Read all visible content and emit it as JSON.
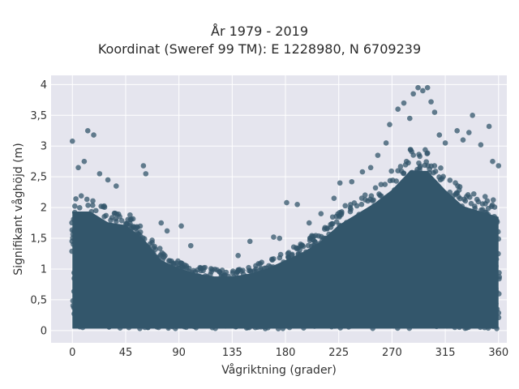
{
  "chart_data": {
    "type": "scatter",
    "title": "År 1979 - 2019",
    "subtitle": "Koordinat (Sweref 99 TM): E 1228980, N 6709239",
    "xlabel": "Vågriktning (grader)",
    "ylabel": "Signifikant våghöjd (m)",
    "xlim": [
      -18,
      367
    ],
    "ylim": [
      -0.2,
      4.15
    ],
    "xticks": [
      {
        "value": 0,
        "label": "0"
      },
      {
        "value": 45,
        "label": "45"
      },
      {
        "value": 90,
        "label": "90"
      },
      {
        "value": 135,
        "label": "135"
      },
      {
        "value": 180,
        "label": "180"
      },
      {
        "value": 225,
        "label": "225"
      },
      {
        "value": 270,
        "label": "270"
      },
      {
        "value": 315,
        "label": "315"
      },
      {
        "value": 360,
        "label": "360"
      }
    ],
    "yticks": [
      {
        "value": 0,
        "label": "0"
      },
      {
        "value": 0.5,
        "label": "0,5"
      },
      {
        "value": 1,
        "label": "1"
      },
      {
        "value": 1.5,
        "label": "1,5"
      },
      {
        "value": 2,
        "label": "2"
      },
      {
        "value": 2.5,
        "label": "2,5"
      },
      {
        "value": 3,
        "label": "3"
      },
      {
        "value": 3.5,
        "label": "3,5"
      },
      {
        "value": 4,
        "label": "4"
      }
    ],
    "grid": true,
    "marker_color": "#33566b",
    "background_color": "#e5e5ee",
    "envelope_max": [
      [
        0,
        2.2
      ],
      [
        15,
        2.2
      ],
      [
        30,
        2.0
      ],
      [
        45,
        1.95
      ],
      [
        60,
        1.7
      ],
      [
        75,
        1.3
      ],
      [
        90,
        1.15
      ],
      [
        105,
        1.05
      ],
      [
        120,
        1.0
      ],
      [
        135,
        1.0
      ],
      [
        150,
        1.05
      ],
      [
        165,
        1.15
      ],
      [
        180,
        1.3
      ],
      [
        195,
        1.45
      ],
      [
        210,
        1.65
      ],
      [
        225,
        1.95
      ],
      [
        240,
        2.15
      ],
      [
        255,
        2.35
      ],
      [
        270,
        2.6
      ],
      [
        285,
        2.95
      ],
      [
        300,
        2.95
      ],
      [
        315,
        2.6
      ],
      [
        330,
        2.3
      ],
      [
        345,
        2.2
      ],
      [
        360,
        2.1
      ]
    ],
    "outliers": [
      [
        0,
        3.08
      ],
      [
        5,
        2.65
      ],
      [
        13,
        3.25
      ],
      [
        18,
        3.18
      ],
      [
        10,
        2.75
      ],
      [
        23,
        2.55
      ],
      [
        30,
        2.45
      ],
      [
        37,
        2.35
      ],
      [
        60,
        2.68
      ],
      [
        62,
        2.55
      ],
      [
        75,
        1.75
      ],
      [
        80,
        1.62
      ],
      [
        92,
        1.7
      ],
      [
        100,
        1.38
      ],
      [
        140,
        1.22
      ],
      [
        150,
        1.45
      ],
      [
        170,
        1.52
      ],
      [
        175,
        1.5
      ],
      [
        181,
        2.08
      ],
      [
        190,
        2.05
      ],
      [
        200,
        1.75
      ],
      [
        210,
        1.9
      ],
      [
        221,
        2.15
      ],
      [
        226,
        2.4
      ],
      [
        236,
        2.42
      ],
      [
        245,
        2.58
      ],
      [
        252,
        2.65
      ],
      [
        258,
        2.85
      ],
      [
        265,
        3.05
      ],
      [
        268,
        3.35
      ],
      [
        275,
        3.6
      ],
      [
        280,
        3.7
      ],
      [
        285,
        3.45
      ],
      [
        288,
        3.85
      ],
      [
        292,
        3.95
      ],
      [
        296,
        3.9
      ],
      [
        300,
        3.95
      ],
      [
        303,
        3.72
      ],
      [
        306,
        3.55
      ],
      [
        310,
        3.18
      ],
      [
        315,
        3.05
      ],
      [
        325,
        3.25
      ],
      [
        330,
        3.1
      ],
      [
        335,
        3.22
      ],
      [
        338,
        3.5
      ],
      [
        345,
        3.02
      ],
      [
        352,
        3.32
      ],
      [
        355,
        2.75
      ],
      [
        360,
        2.68
      ]
    ]
  }
}
